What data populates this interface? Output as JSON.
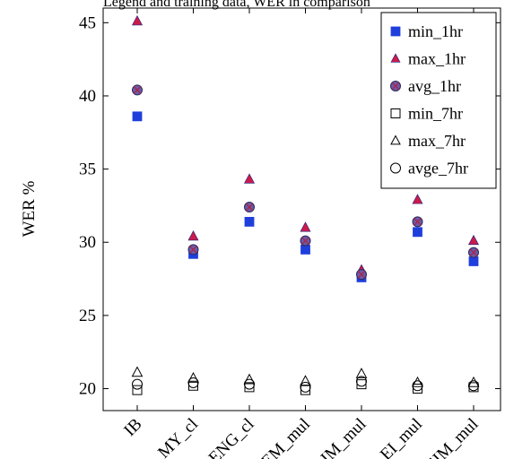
{
  "header": {
    "cut_text": "Legend and training data, WER in comparison"
  },
  "chart_data": {
    "type": "scatter",
    "ylabel": "WER %",
    "xlabel": "",
    "categories": [
      "IB",
      "MY_cl",
      "ENG_cl",
      "EM_mul",
      "IM_mul",
      "EI_mul",
      "EIM_mul"
    ],
    "ylim": [
      18.5,
      46
    ],
    "yticks": [
      20,
      25,
      30,
      35,
      40,
      45
    ],
    "grid": false,
    "legend_position": "top-right",
    "series": [
      {
        "name": "min_1hr",
        "marker": "square-filled",
        "color": "#1f3fdc",
        "values": [
          38.6,
          29.2,
          31.4,
          29.5,
          27.6,
          30.7,
          28.7
        ]
      },
      {
        "name": "max_1hr",
        "marker": "triangle-filled",
        "color": "#cc1a4a",
        "values": [
          45.1,
          30.4,
          34.3,
          31.0,
          28.1,
          32.9,
          30.1
        ]
      },
      {
        "name": "avg_1hr",
        "marker": "circle-x",
        "color": "#6a5aa8",
        "values": [
          40.4,
          29.5,
          32.4,
          30.1,
          27.8,
          31.4,
          29.3
        ]
      },
      {
        "name": "min_7hr",
        "marker": "square-open",
        "color": "#000000",
        "values": [
          19.9,
          20.2,
          20.1,
          19.9,
          20.3,
          20.0,
          20.1
        ]
      },
      {
        "name": "max_7hr",
        "marker": "triangle-open",
        "color": "#000000",
        "values": [
          21.1,
          20.7,
          20.6,
          20.5,
          21.0,
          20.4,
          20.4
        ]
      },
      {
        "name": "avge_7hr",
        "marker": "circle-open",
        "color": "#000000",
        "values": [
          20.3,
          20.4,
          20.3,
          20.1,
          20.5,
          20.2,
          20.2
        ]
      }
    ]
  }
}
